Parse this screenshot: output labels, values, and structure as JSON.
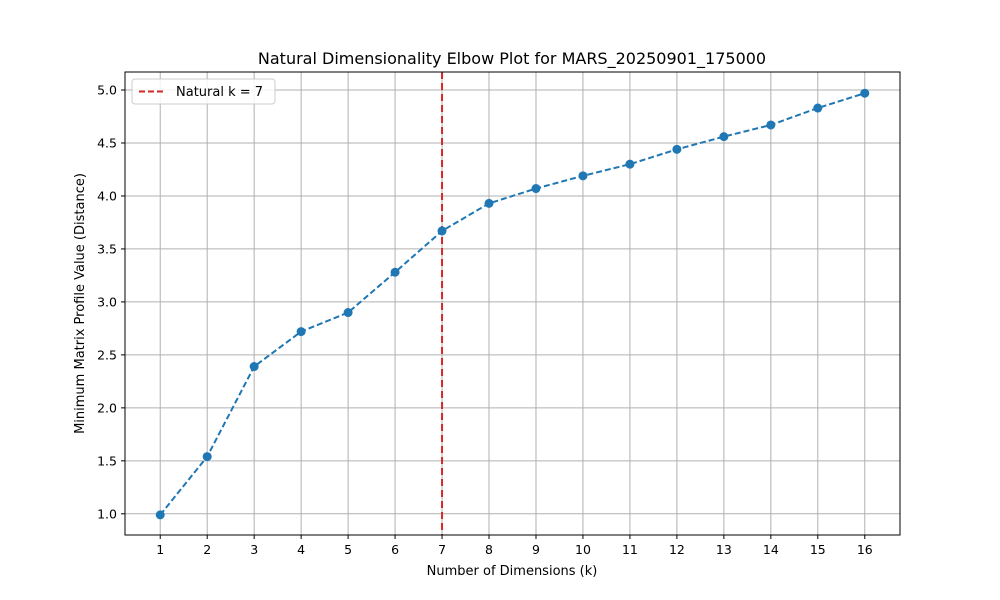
{
  "chart_data": {
    "type": "line",
    "title": "Natural Dimensionality Elbow Plot for MARS_20250901_175000",
    "xlabel": "Number of Dimensions (k)",
    "ylabel": "Minimum Matrix Profile Value (Distance)",
    "x": [
      1,
      2,
      3,
      4,
      5,
      6,
      7,
      8,
      9,
      10,
      11,
      12,
      13,
      14,
      15,
      16
    ],
    "series": [
      {
        "values": [
          0.99,
          1.54,
          2.39,
          2.72,
          2.9,
          3.28,
          3.67,
          3.93,
          4.07,
          4.19,
          4.3,
          4.44,
          4.56,
          4.67,
          4.83,
          4.97
        ],
        "color": "#1f77b4",
        "line_style": "dashed",
        "marker": "circle"
      }
    ],
    "xlim": [
      0.25,
      16.75
    ],
    "ylim": [
      0.8,
      5.17
    ],
    "x_ticks": [
      "1",
      "2",
      "3",
      "4",
      "5",
      "6",
      "7",
      "8",
      "9",
      "10",
      "11",
      "12",
      "13",
      "14",
      "15",
      "16"
    ],
    "y_ticks": [
      "1.0",
      "1.5",
      "2.0",
      "2.5",
      "3.0",
      "3.5",
      "4.0",
      "4.5",
      "5.0"
    ],
    "grid": true,
    "annotations": [
      {
        "type": "vertical-line",
        "x": 7,
        "label": "Natural k = 7",
        "color": "#d62728",
        "line_style": "dashed"
      }
    ],
    "legend": {
      "position": "top-left",
      "entries": [
        "Natural k = 7"
      ]
    }
  }
}
